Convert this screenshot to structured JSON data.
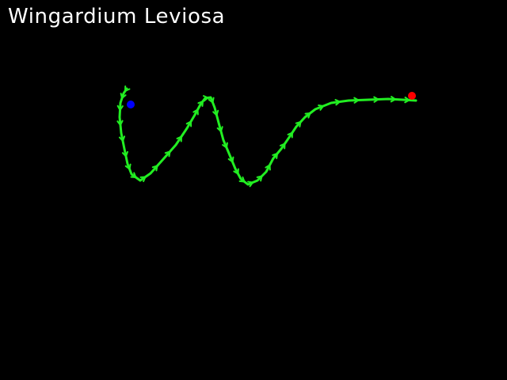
{
  "title": "Wingardium Leviosa",
  "colors": {
    "background": "#000000",
    "title": "#ffffff",
    "path": "#22ee22",
    "start_marker": "#0000ff",
    "end_marker": "#ff0000"
  },
  "icons": {
    "start": "blue-dot-icon",
    "end": "red-dot-icon",
    "direction": "arrowhead-icon"
  }
}
